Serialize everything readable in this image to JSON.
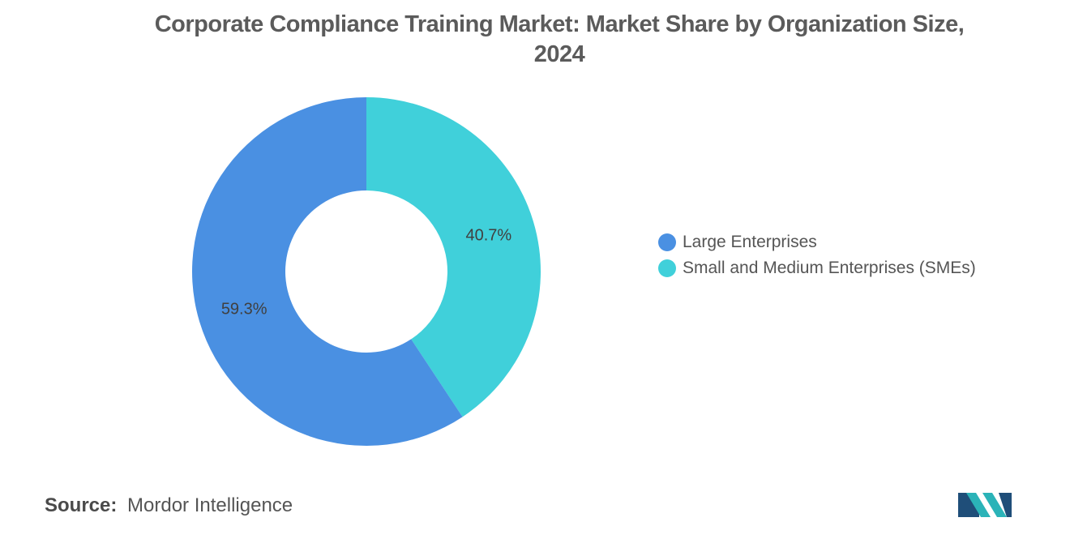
{
  "chart_data": {
    "type": "pie",
    "title_line1": "Corporate Compliance Training Market: Market Share by Organization Size,",
    "title_line2": "2024",
    "categories": [
      "Large Enterprises",
      "Small and Medium Enterprises (SMEs)"
    ],
    "values": [
      59.3,
      40.7
    ],
    "labels": [
      "59.3%",
      "40.7%"
    ],
    "colors": [
      "#4a90e2",
      "#40d0da"
    ],
    "donut": true,
    "legend_position": "right"
  },
  "source": {
    "label": "Source:",
    "text": "Mordor Intelligence"
  },
  "logo": {
    "icon": "mordor-intelligence-logo",
    "colors": [
      "#1f4e79",
      "#2bb3b8"
    ]
  }
}
